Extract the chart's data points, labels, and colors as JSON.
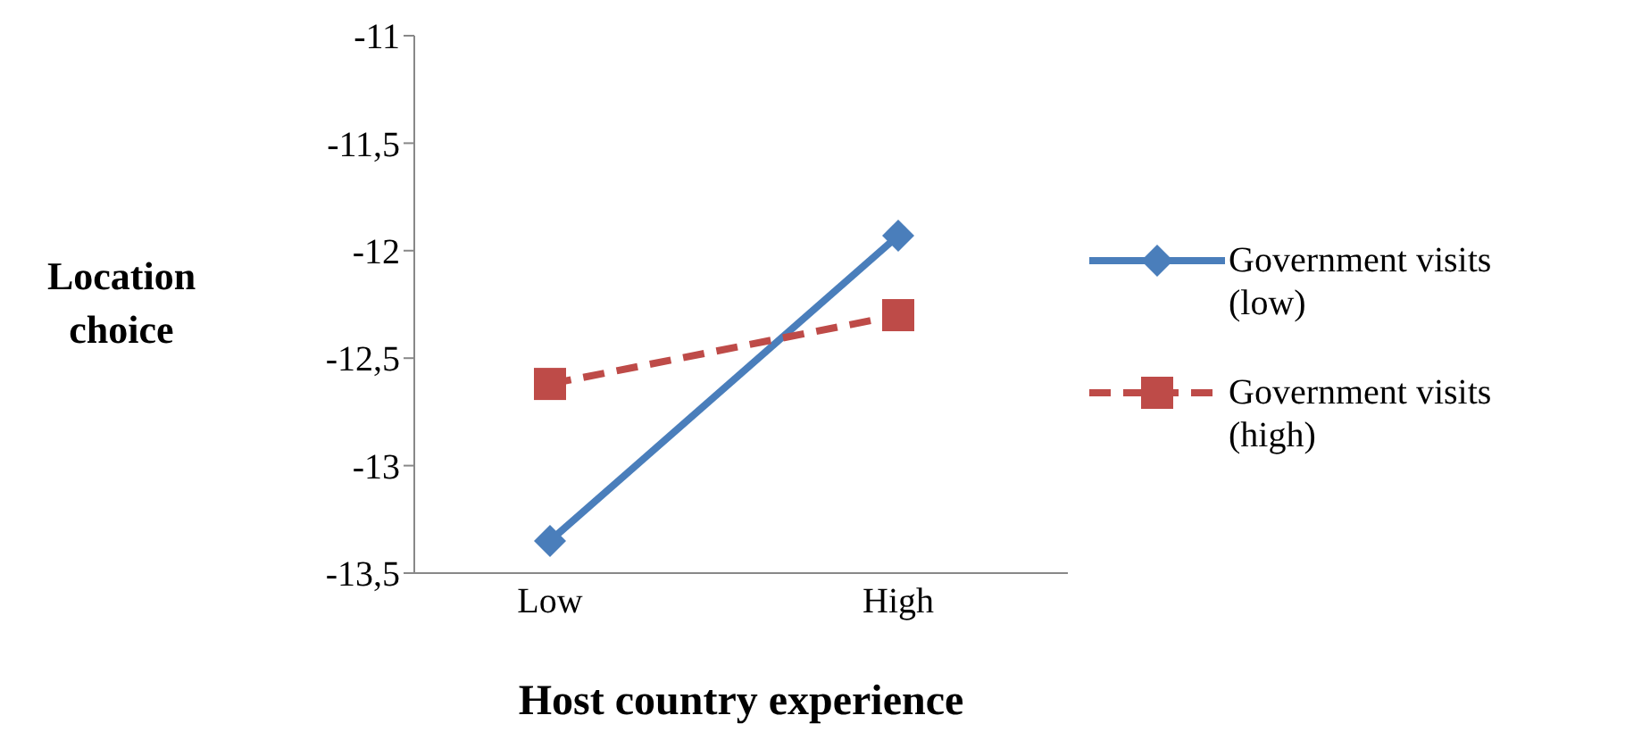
{
  "chart_data": {
    "type": "line",
    "xlabel": "Host country experience",
    "ylabel": "Location choice",
    "categories": [
      "Low",
      "High"
    ],
    "series": [
      {
        "name": "Government visits (low)",
        "color": "#4a7ebb",
        "values": [
          -13.35,
          -11.93
        ],
        "marker": "diamond",
        "line_style": "solid"
      },
      {
        "name": "Government visits (high)",
        "color": "#be4b48",
        "values": [
          -12.62,
          -12.3
        ],
        "marker": "square",
        "line_style": "dashed"
      }
    ],
    "ylim": [
      -13.5,
      -11
    ],
    "yticks": [
      {
        "value": -13.5,
        "label": "-13,5"
      },
      {
        "value": -13,
        "label": "-13"
      },
      {
        "value": -12.5,
        "label": "-12,5"
      },
      {
        "value": -12,
        "label": "-12"
      },
      {
        "value": -11.5,
        "label": "-11,5"
      },
      {
        "value": -11,
        "label": "-11"
      }
    ],
    "grid": false,
    "legend": "right"
  }
}
